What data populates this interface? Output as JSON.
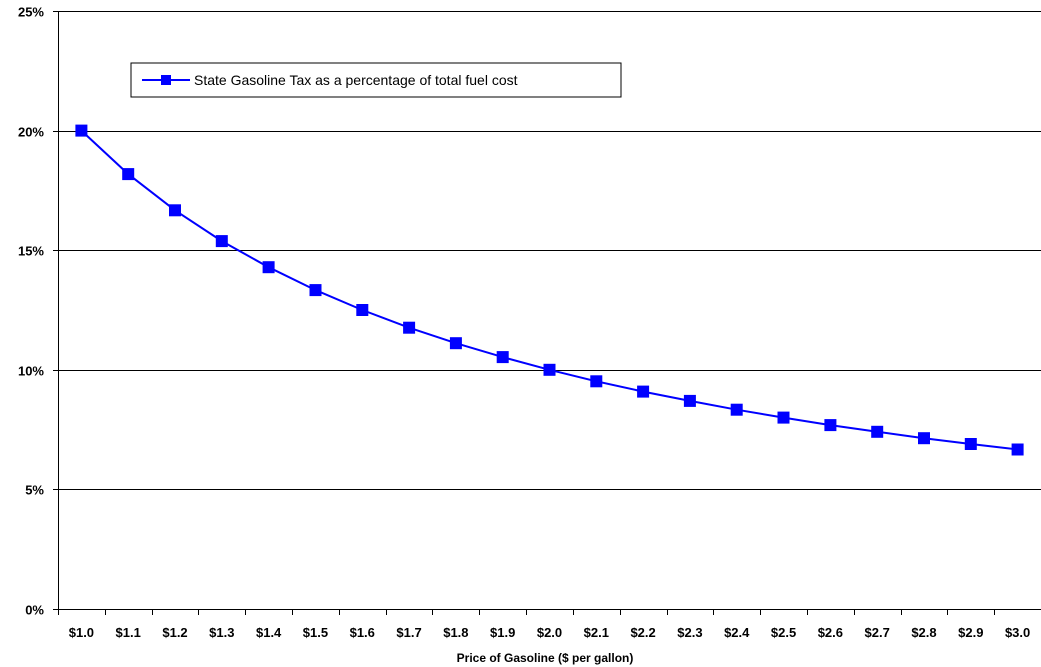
{
  "chart_data": {
    "type": "line",
    "title": "",
    "xlabel": "Price of Gasoline ($ per gallon)",
    "ylabel": "",
    "categories": [
      "$1.0",
      "$1.1",
      "$1.2",
      "$1.3",
      "$1.4",
      "$1.5",
      "$1.6",
      "$1.7",
      "$1.8",
      "$1.9",
      "$2.0",
      "$2.1",
      "$2.2",
      "$2.3",
      "$2.4",
      "$2.5",
      "$2.6",
      "$2.7",
      "$2.8",
      "$2.9",
      "$3.0"
    ],
    "series": [
      {
        "name": "State Gasoline Tax as a percentage of total fuel cost",
        "color": "#0000FF",
        "marker": "square",
        "values": [
          0.2,
          0.1818,
          0.1667,
          0.1538,
          0.1429,
          0.1333,
          0.125,
          0.1176,
          0.1111,
          0.1053,
          0.1,
          0.0952,
          0.0909,
          0.087,
          0.0833,
          0.08,
          0.0769,
          0.0741,
          0.0714,
          0.069,
          0.0667
        ]
      }
    ],
    "ylim": [
      0,
      0.25
    ],
    "yticks": [
      0,
      0.05,
      0.1,
      0.15,
      0.2,
      0.25
    ],
    "ytick_labels": [
      "0%",
      "5%",
      "10%",
      "15%",
      "20%",
      "25%"
    ],
    "grid": "horizontal",
    "legend": "top-left"
  }
}
